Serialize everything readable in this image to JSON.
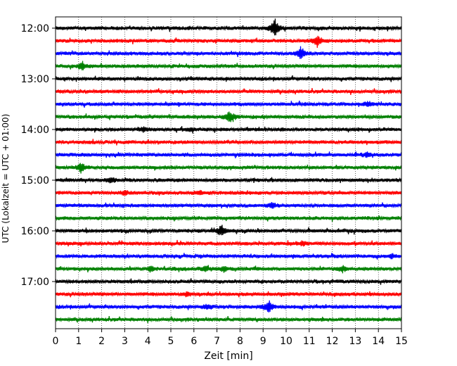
{
  "chart_data": {
    "type": "line",
    "title": "",
    "xlabel": "Zeit  [min]",
    "ylabel": "UTC (Lokalzeit = UTC + 01:00)",
    "xlim": [
      0,
      15
    ],
    "x_ticks": [
      "0",
      "1",
      "2",
      "3",
      "4",
      "5",
      "6",
      "7",
      "8",
      "9",
      "10",
      "11",
      "12",
      "13",
      "14",
      "15"
    ],
    "y_ticks": [
      "12:00",
      "13:00",
      "14:00",
      "15:00",
      "16:00",
      "17:00"
    ],
    "grid": "vertical dotted",
    "legend": "none",
    "row_colors": [
      "#000000",
      "#ff0000",
      "#0000ff",
      "#008000"
    ],
    "rows_start": "12:00",
    "rows_end": "17:45",
    "row_interval_minutes": 15,
    "events": [
      {
        "row": "12:00",
        "x": 9.5,
        "amp": 1.0
      },
      {
        "row": "12:15",
        "x": 11.35,
        "amp": 0.55
      },
      {
        "row": "12:30",
        "x": 10.65,
        "amp": 0.55
      },
      {
        "row": "12:45",
        "x": 1.15,
        "amp": 0.5
      },
      {
        "row": "13:30",
        "x": 13.55,
        "amp": 0.25
      },
      {
        "row": "13:45",
        "x": 7.55,
        "amp": 0.55
      },
      {
        "row": "14:00",
        "x": 3.8,
        "amp": 0.25
      },
      {
        "row": "14:00",
        "x": 5.85,
        "amp": 0.2
      },
      {
        "row": "14:30",
        "x": 13.5,
        "amp": 0.25
      },
      {
        "row": "14:45",
        "x": 1.1,
        "amp": 0.45
      },
      {
        "row": "15:00",
        "x": 2.4,
        "amp": 0.25
      },
      {
        "row": "15:15",
        "x": 3.0,
        "amp": 0.2
      },
      {
        "row": "15:15",
        "x": 6.25,
        "amp": 0.2
      },
      {
        "row": "15:30",
        "x": 9.4,
        "amp": 0.3
      },
      {
        "row": "16:00",
        "x": 7.2,
        "amp": 0.55
      },
      {
        "row": "16:15",
        "x": 10.75,
        "amp": 0.2
      },
      {
        "row": "16:30",
        "x": 14.55,
        "amp": 0.2
      },
      {
        "row": "16:45",
        "x": 4.1,
        "amp": 0.25
      },
      {
        "row": "16:45",
        "x": 6.5,
        "amp": 0.25
      },
      {
        "row": "16:45",
        "x": 7.3,
        "amp": 0.25
      },
      {
        "row": "16:45",
        "x": 12.45,
        "amp": 0.25
      },
      {
        "row": "17:15",
        "x": 5.7,
        "amp": 0.2
      },
      {
        "row": "17:30",
        "x": 9.25,
        "amp": 0.6
      },
      {
        "row": "17:30",
        "x": 6.6,
        "amp": 0.2
      }
    ]
  }
}
